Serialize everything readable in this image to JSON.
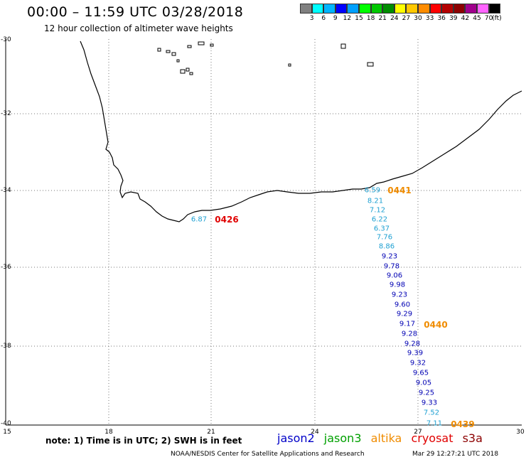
{
  "header": {
    "title": "00:00 – 11:59 UTC 03/28/2018",
    "subtitle": "12 hour collection of altimeter wave heights"
  },
  "colorbar": {
    "colors": [
      "#808080",
      "#00ffff",
      "#00b4ff",
      "#0000ff",
      "#00a0ff",
      "#00ff00",
      "#00c800",
      "#008c00",
      "#ffff00",
      "#ffc800",
      "#ff8c00",
      "#ff0000",
      "#b40000",
      "#8c0000",
      "#a0008c",
      "#ff64ff",
      "#000000"
    ],
    "labels": [
      "3",
      "6",
      "9",
      "12",
      "15",
      "18",
      "21",
      "24",
      "27",
      "30",
      "33",
      "36",
      "39",
      "42",
      "45",
      "70",
      "(ft)"
    ]
  },
  "axes": {
    "lat_labels": [
      "-30",
      "-32",
      "-34",
      "-36",
      "-38",
      "-40"
    ],
    "lon_labels": [
      "15",
      "18",
      "21",
      "24",
      "27",
      "30"
    ]
  },
  "passes": [
    {
      "id": "0426",
      "satellite": "cryosat",
      "color": "#e00000"
    },
    {
      "id": "0441",
      "satellite": "altika",
      "color": "#f08c00"
    },
    {
      "id": "0440",
      "satellite": "altika",
      "color": "#f08c00"
    },
    {
      "id": "0439",
      "satellite": "altika",
      "color": "#f08c00"
    }
  ],
  "swh_values": [
    {
      "v": "6.87",
      "color": "#1ea0d2"
    },
    {
      "v": "6.59",
      "color": "#1ea0d2"
    },
    {
      "v": "8.21",
      "color": "#1ea0d2"
    },
    {
      "v": "7.12",
      "color": "#1ea0d2"
    },
    {
      "v": "6.22",
      "color": "#1ea0d2"
    },
    {
      "v": "6.37",
      "color": "#1ea0d2"
    },
    {
      "v": "7.76",
      "color": "#1ea0d2"
    },
    {
      "v": "8.86",
      "color": "#1ea0d2"
    },
    {
      "v": "9.23",
      "color": "#0000b4"
    },
    {
      "v": "9.78",
      "color": "#0000b4"
    },
    {
      "v": "9.06",
      "color": "#0000b4"
    },
    {
      "v": "9.98",
      "color": "#0000b4"
    },
    {
      "v": "9.23",
      "color": "#0000b4"
    },
    {
      "v": "9.60",
      "color": "#0000b4"
    },
    {
      "v": "9.29",
      "color": "#0000b4"
    },
    {
      "v": "9.17",
      "color": "#0000b4"
    },
    {
      "v": "9.28",
      "color": "#0000b4"
    },
    {
      "v": "9.28",
      "color": "#0000b4"
    },
    {
      "v": "9.39",
      "color": "#0000b4"
    },
    {
      "v": "9.32",
      "color": "#0000b4"
    },
    {
      "v": "9.65",
      "color": "#0000b4"
    },
    {
      "v": "9.05",
      "color": "#0000b4"
    },
    {
      "v": "9.25",
      "color": "#0000b4"
    },
    {
      "v": "9.33",
      "color": "#0000b4"
    },
    {
      "v": "7.52",
      "color": "#1ea0d2"
    },
    {
      "v": "7.11",
      "color": "#1ea0d2"
    }
  ],
  "footer": {
    "note": "note:  1) Time is in UTC;  2) SWH is in feet",
    "satellites": [
      {
        "name": "jason2",
        "color": "#0000c8"
      },
      {
        "name": "jason3",
        "color": "#00a000"
      },
      {
        "name": "altika",
        "color": "#f08c00"
      },
      {
        "name": "cryosat",
        "color": "#e00000"
      },
      {
        "name": "s3a",
        "color": "#8c0000"
      }
    ],
    "credit": "NOAA/NESDIS Center for Satellite Applications and Research",
    "timestamp": "Mar 29 12:27:21 UTC 2018"
  }
}
